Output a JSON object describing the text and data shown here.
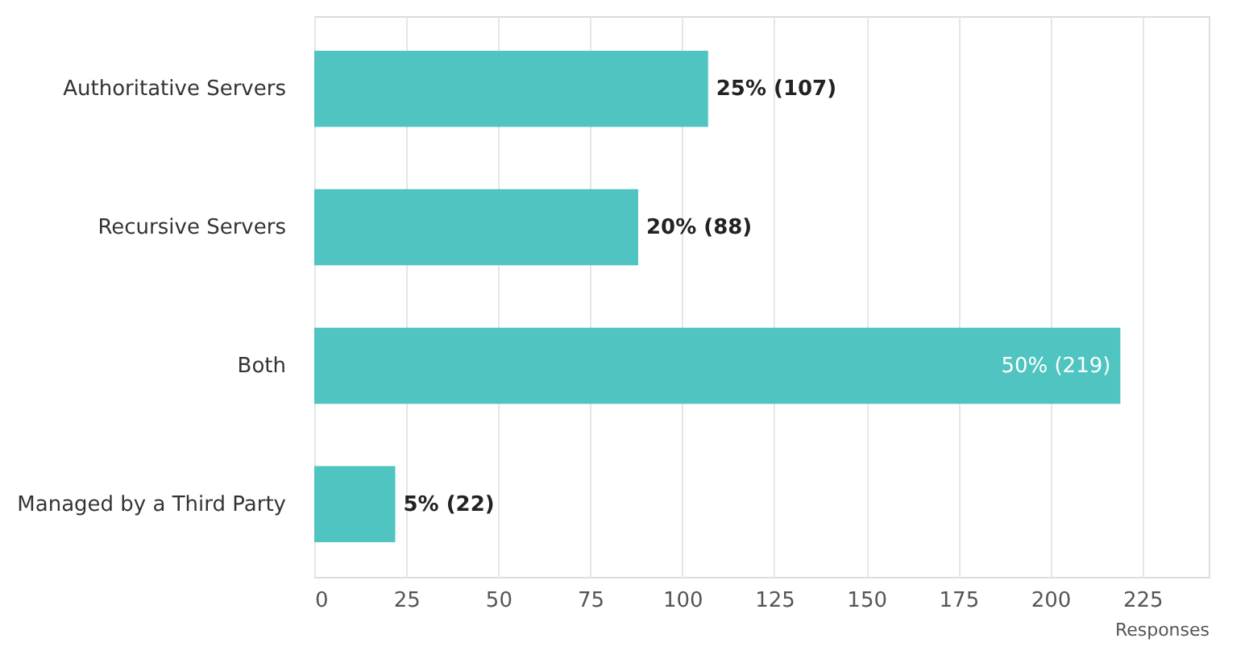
{
  "chart_data": {
    "type": "bar",
    "orientation": "horizontal",
    "categories": [
      "Authoritative Servers",
      "Recursive Servers",
      "Both",
      "Managed by a Third Party"
    ],
    "values": [
      107,
      88,
      219,
      22
    ],
    "value_labels": [
      "25% (107)",
      "20% (88)",
      "50% (219)",
      "5% (22)"
    ],
    "color": "#4fc4c0",
    "xlabel": "Responses",
    "xlim": [
      0,
      243
    ],
    "xticks": [
      0,
      25,
      50,
      75,
      100,
      125,
      150,
      175,
      200,
      225
    ],
    "grid": "x"
  }
}
